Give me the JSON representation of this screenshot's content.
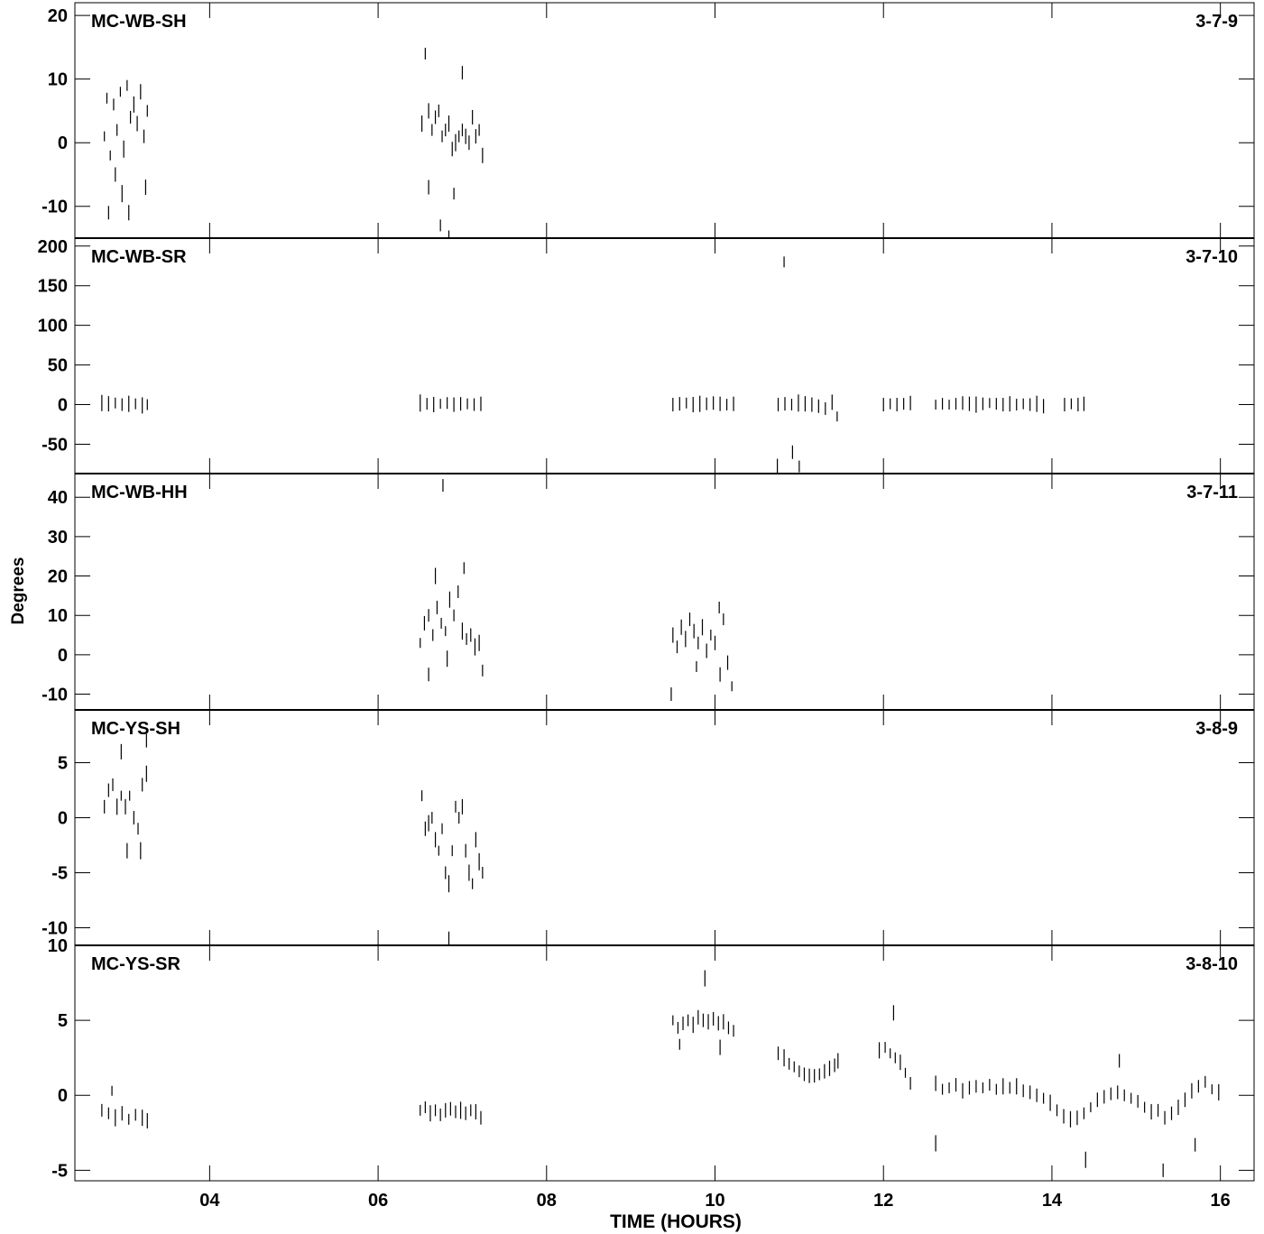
{
  "chart_data": {
    "type": "scatter",
    "xlabel": "TIME (HOURS)",
    "ylabel": "Degrees",
    "xlim": [
      2.4,
      16.4
    ],
    "x_ticks": [
      "04",
      "06",
      "08",
      "10",
      "12",
      "14",
      "16"
    ],
    "x_tick_values": [
      4,
      6,
      8,
      10,
      12,
      14,
      16
    ],
    "marker": "vertical error bar",
    "panels": [
      {
        "name": "MC-WB-SH",
        "id": "3-7-9",
        "ylim": [
          -15,
          22
        ],
        "yticks": [
          -10,
          0,
          10,
          20
        ],
        "points": [
          [
            2.75,
            1
          ],
          [
            2.78,
            7
          ],
          [
            2.82,
            -2
          ],
          [
            2.86,
            6
          ],
          [
            2.9,
            2
          ],
          [
            2.94,
            8
          ],
          [
            2.98,
            -1
          ],
          [
            3.02,
            9
          ],
          [
            3.06,
            4
          ],
          [
            3.1,
            6
          ],
          [
            3.14,
            3
          ],
          [
            3.18,
            8
          ],
          [
            3.22,
            1
          ],
          [
            3.26,
            5
          ],
          [
            2.8,
            -11
          ],
          [
            2.88,
            -5
          ],
          [
            2.96,
            -8
          ],
          [
            3.04,
            -11
          ],
          [
            3.24,
            -7
          ],
          [
            6.52,
            3
          ],
          [
            6.56,
            14
          ],
          [
            6.6,
            5
          ],
          [
            6.64,
            2
          ],
          [
            6.68,
            4
          ],
          [
            6.72,
            5
          ],
          [
            6.76,
            1
          ],
          [
            6.8,
            2
          ],
          [
            6.84,
            3
          ],
          [
            6.88,
            -1
          ],
          [
            6.92,
            0
          ],
          [
            6.96,
            1
          ],
          [
            7.0,
            2
          ],
          [
            7.04,
            1
          ],
          [
            7.08,
            0
          ],
          [
            7.12,
            4
          ],
          [
            7.16,
            1
          ],
          [
            7.2,
            2
          ],
          [
            7.24,
            -2
          ],
          [
            6.74,
            -13
          ],
          [
            6.84,
            -15
          ],
          [
            6.6,
            -7
          ],
          [
            6.9,
            -8
          ],
          [
            7.0,
            11
          ]
        ]
      },
      {
        "name": "MC-WB-SR",
        "id": "3-7-10",
        "ylim": [
          -87,
          210
        ],
        "yticks": [
          -50,
          0,
          50,
          100,
          150,
          200
        ],
        "points": [
          [
            2.72,
            2
          ],
          [
            2.8,
            1
          ],
          [
            2.88,
            2
          ],
          [
            2.96,
            0
          ],
          [
            3.04,
            1
          ],
          [
            3.12,
            1
          ],
          [
            3.2,
            -1
          ],
          [
            3.26,
            0
          ],
          [
            6.5,
            2
          ],
          [
            6.58,
            1
          ],
          [
            6.66,
            0
          ],
          [
            6.74,
            1
          ],
          [
            6.82,
            2
          ],
          [
            6.9,
            0
          ],
          [
            6.98,
            1
          ],
          [
            7.06,
            1
          ],
          [
            7.14,
            0
          ],
          [
            7.22,
            1
          ],
          [
            9.5,
            0
          ],
          [
            9.58,
            1
          ],
          [
            9.66,
            2
          ],
          [
            9.74,
            0
          ],
          [
            9.82,
            1
          ],
          [
            9.9,
            1
          ],
          [
            9.98,
            2
          ],
          [
            10.06,
            1
          ],
          [
            10.14,
            0
          ],
          [
            10.22,
            1
          ],
          [
            10.75,
            0
          ],
          [
            10.83,
            1
          ],
          [
            10.91,
            0
          ],
          [
            10.99,
            2
          ],
          [
            11.07,
            1
          ],
          [
            11.15,
            0
          ],
          [
            11.23,
            -2
          ],
          [
            11.31,
            -5
          ],
          [
            11.39,
            3
          ],
          [
            11.45,
            -15
          ],
          [
            10.82,
            180
          ],
          [
            10.92,
            -60
          ],
          [
            10.74,
            -78
          ],
          [
            11.0,
            -78
          ],
          [
            12.0,
            0
          ],
          [
            12.08,
            1
          ],
          [
            12.16,
            0
          ],
          [
            12.24,
            1
          ],
          [
            12.32,
            2
          ],
          [
            12.62,
            0
          ],
          [
            12.7,
            1
          ],
          [
            12.78,
            0
          ],
          [
            12.86,
            1
          ],
          [
            12.94,
            2
          ],
          [
            13.02,
            1
          ],
          [
            13.1,
            0
          ],
          [
            13.18,
            1
          ],
          [
            13.26,
            2
          ],
          [
            13.34,
            1
          ],
          [
            13.42,
            0
          ],
          [
            13.5,
            1
          ],
          [
            13.58,
            0
          ],
          [
            13.66,
            1
          ],
          [
            13.74,
            0
          ],
          [
            13.82,
            1
          ],
          [
            13.9,
            -2
          ],
          [
            14.15,
            0
          ],
          [
            14.23,
            1
          ],
          [
            14.31,
            0
          ],
          [
            14.38,
            1
          ]
        ]
      },
      {
        "name": "MC-WB-HH",
        "id": "3-7-11",
        "ylim": [
          -14,
          46
        ],
        "yticks": [
          -10,
          0,
          10,
          20,
          30,
          40
        ],
        "points": [
          [
            6.5,
            3
          ],
          [
            6.55,
            8
          ],
          [
            6.6,
            10
          ],
          [
            6.65,
            5
          ],
          [
            6.7,
            12
          ],
          [
            6.75,
            8
          ],
          [
            6.8,
            6
          ],
          [
            6.85,
            14
          ],
          [
            6.9,
            10
          ],
          [
            6.95,
            16
          ],
          [
            7.0,
            6
          ],
          [
            7.05,
            4
          ],
          [
            7.1,
            5
          ],
          [
            7.15,
            2
          ],
          [
            7.2,
            3
          ],
          [
            7.24,
            -4
          ],
          [
            6.6,
            -5
          ],
          [
            6.68,
            20
          ],
          [
            6.77,
            43
          ],
          [
            6.82,
            -1
          ],
          [
            7.02,
            22
          ],
          [
            9.5,
            5
          ],
          [
            9.55,
            2
          ],
          [
            9.6,
            7
          ],
          [
            9.65,
            4
          ],
          [
            9.7,
            9
          ],
          [
            9.75,
            6
          ],
          [
            9.8,
            3
          ],
          [
            9.85,
            7
          ],
          [
            9.9,
            1
          ],
          [
            9.95,
            5
          ],
          [
            10.0,
            3
          ],
          [
            10.05,
            12
          ],
          [
            10.1,
            9
          ],
          [
            10.15,
            -2
          ],
          [
            10.2,
            -8
          ],
          [
            9.48,
            -10
          ],
          [
            9.78,
            -3
          ],
          [
            10.06,
            -5
          ]
        ]
      },
      {
        "name": "MC-YS-SH",
        "id": "3-8-9",
        "ylim": [
          -11.6,
          9.8
        ],
        "yticks": [
          -10,
          -5,
          0,
          5
        ],
        "points": [
          [
            2.75,
            1
          ],
          [
            2.8,
            2.5
          ],
          [
            2.85,
            3
          ],
          [
            2.9,
            1
          ],
          [
            2.95,
            2
          ],
          [
            3.0,
            1
          ],
          [
            3.05,
            2
          ],
          [
            3.1,
            0
          ],
          [
            3.15,
            -1
          ],
          [
            3.2,
            3
          ],
          [
            3.25,
            4
          ],
          [
            3.02,
            -3
          ],
          [
            3.18,
            -3
          ],
          [
            3.25,
            7
          ],
          [
            2.95,
            6
          ],
          [
            6.52,
            2
          ],
          [
            6.56,
            -1
          ],
          [
            6.6,
            -0.5
          ],
          [
            6.64,
            0
          ],
          [
            6.68,
            -2
          ],
          [
            6.72,
            -3
          ],
          [
            6.76,
            -1
          ],
          [
            6.8,
            -5
          ],
          [
            6.84,
            -6
          ],
          [
            6.88,
            -3
          ],
          [
            6.92,
            1
          ],
          [
            6.96,
            0
          ],
          [
            7.0,
            1
          ],
          [
            7.04,
            -3
          ],
          [
            7.08,
            -5
          ],
          [
            7.12,
            -6
          ],
          [
            7.16,
            -2
          ],
          [
            7.2,
            -4
          ],
          [
            7.24,
            -5
          ],
          [
            6.84,
            -11
          ]
        ]
      },
      {
        "name": "MC-YS-SR",
        "id": "3-8-10",
        "ylim": [
          -5.7,
          10
        ],
        "yticks": [
          -5,
          0,
          5,
          10
        ],
        "points": [
          [
            2.72,
            -1
          ],
          [
            2.8,
            -1.2
          ],
          [
            2.88,
            -1.5
          ],
          [
            2.96,
            -1.2
          ],
          [
            3.04,
            -1.6
          ],
          [
            3.12,
            -1.3
          ],
          [
            3.2,
            -1.5
          ],
          [
            3.26,
            -1.7
          ],
          [
            2.84,
            0.3
          ],
          [
            6.5,
            -1
          ],
          [
            6.56,
            -0.8
          ],
          [
            6.62,
            -1.2
          ],
          [
            6.68,
            -1
          ],
          [
            6.74,
            -1.3
          ],
          [
            6.8,
            -1
          ],
          [
            6.86,
            -0.9
          ],
          [
            6.92,
            -1.1
          ],
          [
            6.98,
            -1
          ],
          [
            7.04,
            -1.2
          ],
          [
            7.1,
            -1
          ],
          [
            7.16,
            -1.1
          ],
          [
            7.22,
            -1.5
          ],
          [
            9.5,
            5
          ],
          [
            9.56,
            4.5
          ],
          [
            9.62,
            4.8
          ],
          [
            9.68,
            5
          ],
          [
            9.74,
            4.7
          ],
          [
            9.8,
            5.2
          ],
          [
            9.86,
            5
          ],
          [
            9.92,
            4.9
          ],
          [
            9.98,
            5.1
          ],
          [
            10.04,
            4.8
          ],
          [
            10.1,
            4.9
          ],
          [
            10.16,
            4.5
          ],
          [
            10.22,
            4.3
          ],
          [
            9.88,
            7.8
          ],
          [
            10.06,
            3.2
          ],
          [
            9.58,
            3.4
          ],
          [
            10.75,
            2.8
          ],
          [
            10.82,
            2.5
          ],
          [
            10.88,
            2.1
          ],
          [
            10.94,
            1.9
          ],
          [
            11.0,
            1.6
          ],
          [
            11.06,
            1.4
          ],
          [
            11.12,
            1.3
          ],
          [
            11.18,
            1.3
          ],
          [
            11.24,
            1.4
          ],
          [
            11.3,
            1.6
          ],
          [
            11.36,
            1.8
          ],
          [
            11.42,
            2
          ],
          [
            11.46,
            2.3
          ],
          [
            11.95,
            3
          ],
          [
            12.02,
            3.2
          ],
          [
            12.08,
            2.8
          ],
          [
            12.14,
            2.5
          ],
          [
            12.2,
            2.2
          ],
          [
            12.26,
            1.5
          ],
          [
            12.32,
            0.8
          ],
          [
            12.12,
            5.5
          ],
          [
            12.62,
            0.8
          ],
          [
            12.7,
            0.4
          ],
          [
            12.78,
            0.5
          ],
          [
            12.86,
            0.7
          ],
          [
            12.94,
            0.3
          ],
          [
            13.02,
            0.5
          ],
          [
            13.1,
            0.6
          ],
          [
            13.18,
            0.5
          ],
          [
            13.26,
            0.7
          ],
          [
            13.34,
            0.4
          ],
          [
            13.42,
            0.6
          ],
          [
            13.5,
            0.5
          ],
          [
            13.58,
            0.6
          ],
          [
            13.66,
            0.3
          ],
          [
            13.74,
            0.2
          ],
          [
            13.82,
            0
          ],
          [
            13.9,
            -0.2
          ],
          [
            13.98,
            -0.5
          ],
          [
            14.06,
            -1
          ],
          [
            14.14,
            -1.4
          ],
          [
            14.22,
            -1.6
          ],
          [
            14.3,
            -1.5
          ],
          [
            14.38,
            -1.2
          ],
          [
            14.46,
            -0.8
          ],
          [
            14.54,
            -0.3
          ],
          [
            14.62,
            -0.1
          ],
          [
            14.7,
            0.1
          ],
          [
            14.78,
            0.2
          ],
          [
            14.86,
            0
          ],
          [
            14.94,
            -0.2
          ],
          [
            15.02,
            -0.4
          ],
          [
            15.1,
            -0.8
          ],
          [
            15.18,
            -1.1
          ],
          [
            15.26,
            -1
          ],
          [
            15.34,
            -1.5
          ],
          [
            15.42,
            -1.2
          ],
          [
            15.5,
            -0.8
          ],
          [
            15.58,
            -0.3
          ],
          [
            15.66,
            0.3
          ],
          [
            15.74,
            0.6
          ],
          [
            15.82,
            0.9
          ],
          [
            15.9,
            0.4
          ],
          [
            15.98,
            0.2
          ],
          [
            12.62,
            -3.2
          ],
          [
            14.4,
            -4.3
          ],
          [
            15.32,
            -5
          ],
          [
            15.7,
            -3.3
          ],
          [
            14.8,
            2.3
          ]
        ]
      }
    ]
  }
}
